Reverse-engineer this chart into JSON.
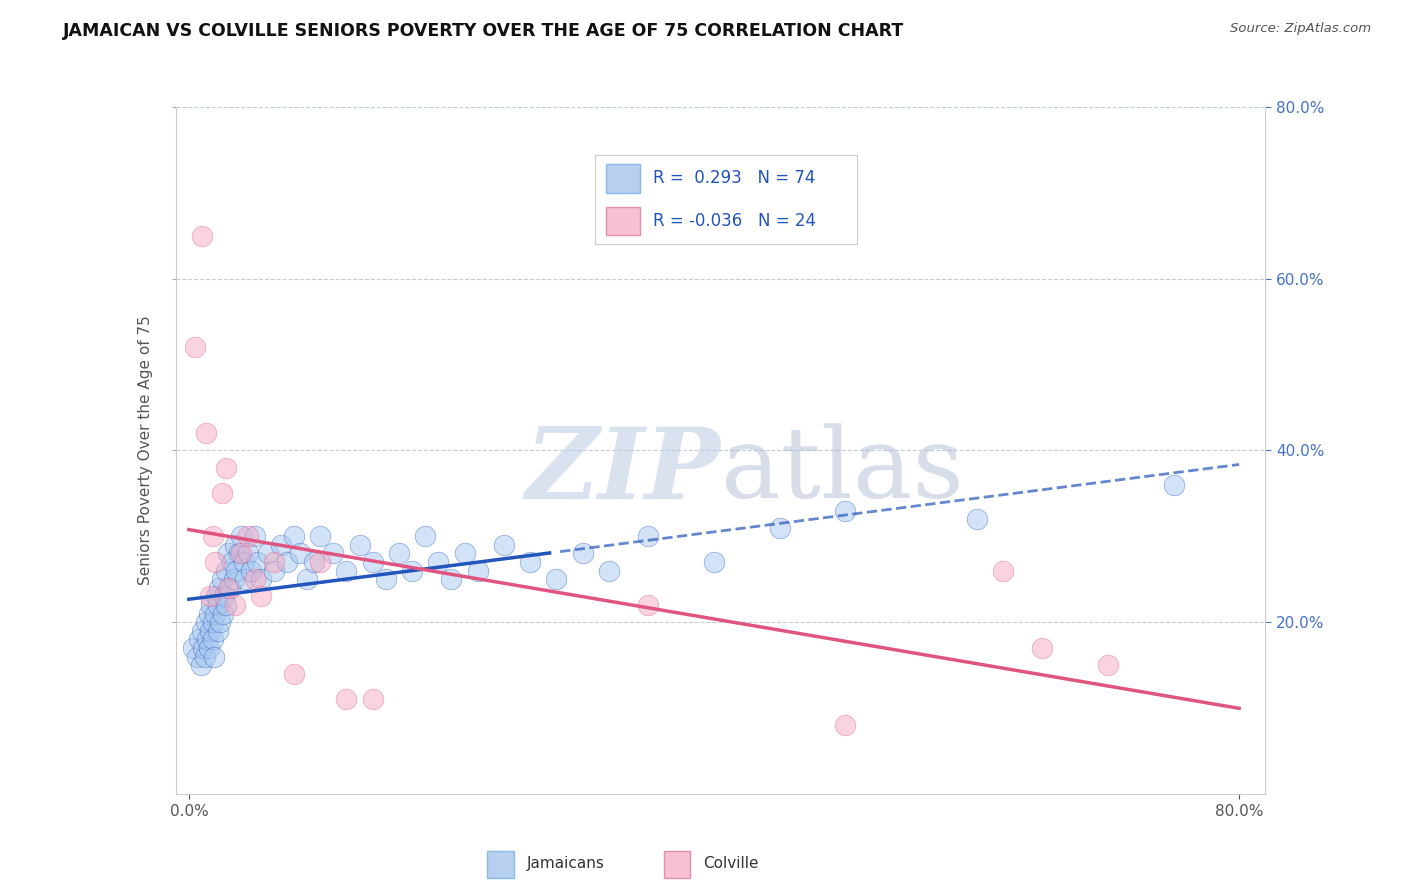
{
  "title": "JAMAICAN VS COLVILLE SENIORS POVERTY OVER THE AGE OF 75 CORRELATION CHART",
  "source": "Source: ZipAtlas.com",
  "ylabel_text": "Seniors Poverty Over the Age of 75",
  "r_jamaican": 0.293,
  "n_jamaican": 74,
  "r_colville": -0.036,
  "n_colville": 24,
  "color_jamaican": "#a8c8f0",
  "color_colville": "#f4a8c0",
  "line_color_jamaican": "#2255bb",
  "line_color_colville": "#e05580",
  "legend_box_jamaican": "#b8d0f0",
  "legend_box_colville": "#f8c0d0",
  "background_color": "#ffffff",
  "watermark_zip": "#c8d8e8",
  "watermark_atlas": "#c0c8e0",
  "ylim": [
    0.0,
    0.8
  ],
  "xlim": [
    -0.01,
    0.82
  ],
  "jamaican_x": [
    0.003,
    0.006,
    0.008,
    0.009,
    0.01,
    0.011,
    0.012,
    0.013,
    0.014,
    0.015,
    0.015,
    0.016,
    0.017,
    0.018,
    0.018,
    0.019,
    0.02,
    0.021,
    0.022,
    0.022,
    0.023,
    0.024,
    0.025,
    0.026,
    0.027,
    0.028,
    0.028,
    0.03,
    0.031,
    0.033,
    0.034,
    0.035,
    0.036,
    0.038,
    0.04,
    0.042,
    0.043,
    0.045,
    0.047,
    0.05,
    0.052,
    0.055,
    0.06,
    0.065,
    0.07,
    0.075,
    0.08,
    0.085,
    0.09,
    0.095,
    0.1,
    0.11,
    0.12,
    0.13,
    0.14,
    0.15,
    0.16,
    0.17,
    0.18,
    0.19,
    0.2,
    0.21,
    0.22,
    0.24,
    0.26,
    0.28,
    0.3,
    0.32,
    0.35,
    0.4,
    0.45,
    0.5,
    0.6,
    0.75
  ],
  "jamaican_y": [
    0.17,
    0.16,
    0.18,
    0.15,
    0.19,
    0.17,
    0.16,
    0.2,
    0.18,
    0.21,
    0.17,
    0.19,
    0.22,
    0.18,
    0.2,
    0.16,
    0.21,
    0.23,
    0.19,
    0.22,
    0.24,
    0.2,
    0.25,
    0.21,
    0.23,
    0.26,
    0.22,
    0.28,
    0.24,
    0.27,
    0.25,
    0.29,
    0.26,
    0.28,
    0.3,
    0.27,
    0.25,
    0.28,
    0.26,
    0.3,
    0.27,
    0.25,
    0.28,
    0.26,
    0.29,
    0.27,
    0.3,
    0.28,
    0.25,
    0.27,
    0.3,
    0.28,
    0.26,
    0.29,
    0.27,
    0.25,
    0.28,
    0.26,
    0.3,
    0.27,
    0.25,
    0.28,
    0.26,
    0.29,
    0.27,
    0.25,
    0.28,
    0.26,
    0.3,
    0.27,
    0.31,
    0.33,
    0.32,
    0.36
  ],
  "colville_x": [
    0.005,
    0.01,
    0.013,
    0.016,
    0.018,
    0.02,
    0.025,
    0.028,
    0.03,
    0.035,
    0.04,
    0.045,
    0.05,
    0.055,
    0.065,
    0.08,
    0.1,
    0.12,
    0.14,
    0.35,
    0.5,
    0.62,
    0.65,
    0.7
  ],
  "colville_y": [
    0.52,
    0.65,
    0.42,
    0.23,
    0.3,
    0.27,
    0.35,
    0.38,
    0.24,
    0.22,
    0.28,
    0.3,
    0.25,
    0.23,
    0.27,
    0.14,
    0.27,
    0.11,
    0.11,
    0.22,
    0.08,
    0.26,
    0.17,
    0.15
  ]
}
